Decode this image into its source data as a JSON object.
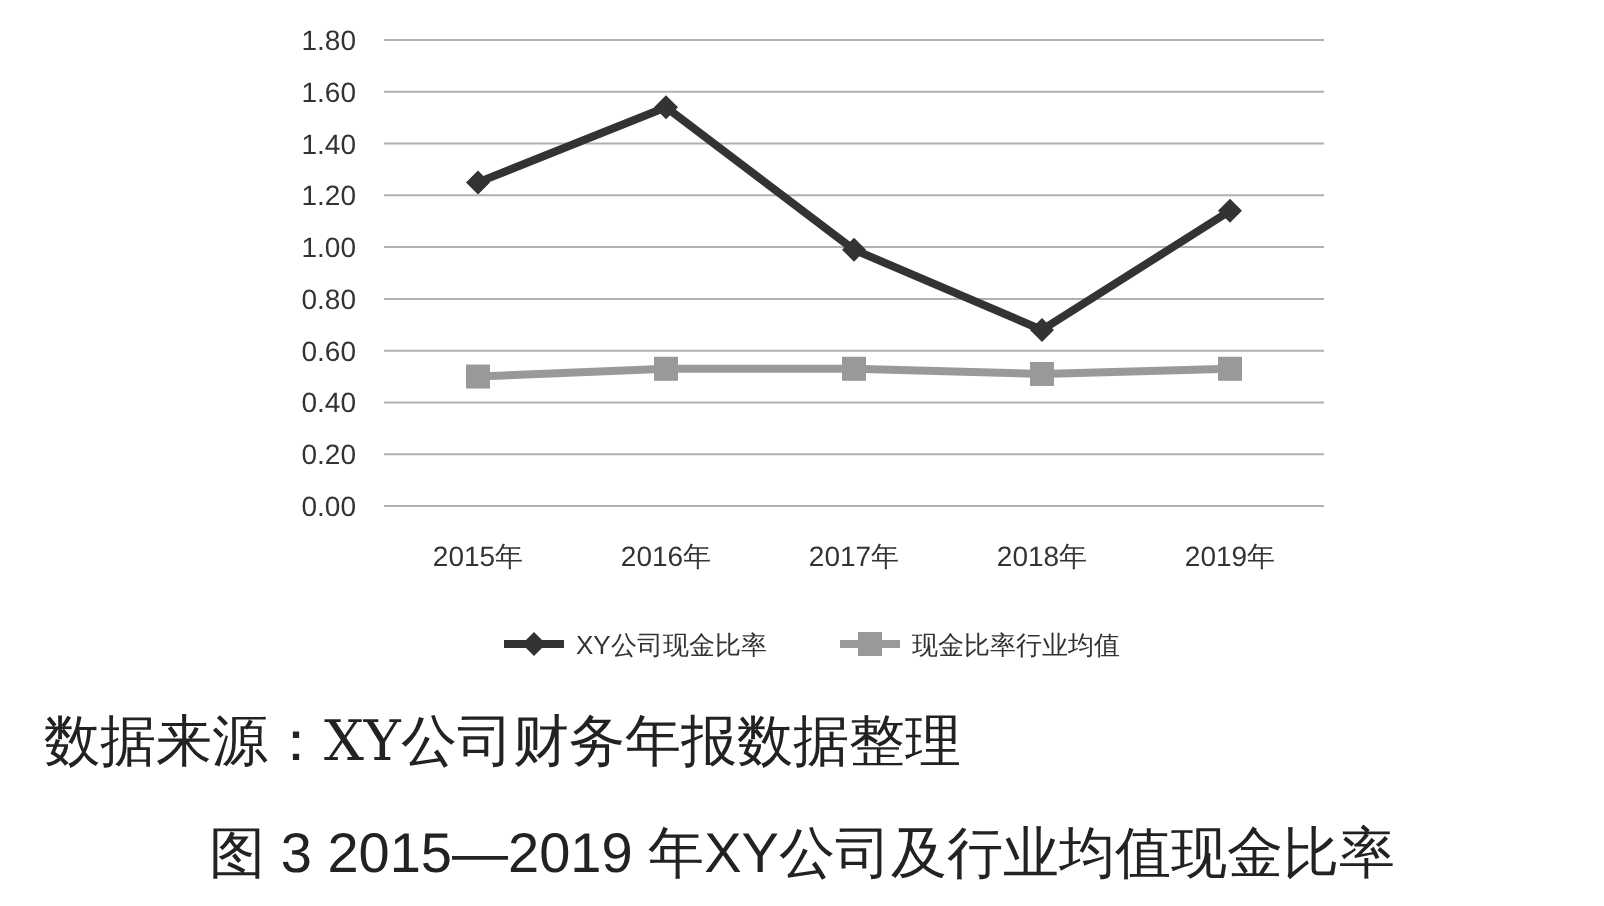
{
  "chart_data": {
    "type": "line",
    "title": "图 3 2015—2019 年XY公司及行业均值现金比率",
    "annotations": [
      "数据来源：XY公司财务年报数据整理"
    ],
    "categories": [
      "2015年",
      "2016年",
      "2017年",
      "2018年",
      "2019年"
    ],
    "series": [
      {
        "name": "XY公司现金比率",
        "color": "#333333",
        "marker": "diamond",
        "values": [
          1.25,
          1.54,
          0.99,
          0.68,
          1.14
        ]
      },
      {
        "name": "现金比率行业均值",
        "color": "#999999",
        "marker": "square",
        "values": [
          0.5,
          0.53,
          0.53,
          0.51,
          0.53
        ]
      }
    ],
    "ylim": [
      0,
      1.8
    ],
    "yticks": [
      {
        "value": 0,
        "label": "0.00"
      },
      {
        "value": 0.2,
        "label": "0.20"
      },
      {
        "value": 0.4,
        "label": "0.40"
      },
      {
        "value": 0.6,
        "label": "0.60"
      },
      {
        "value": 0.8,
        "label": "0.80"
      },
      {
        "value": 1.0,
        "label": "1.00"
      },
      {
        "value": 1.2,
        "label": "1.20"
      },
      {
        "value": 1.4,
        "label": "1.40"
      },
      {
        "value": 1.6,
        "label": "1.60"
      },
      {
        "value": 1.8,
        "label": "1.80"
      }
    ],
    "grid": "y",
    "legend": "bottom",
    "line_style": "solid"
  }
}
